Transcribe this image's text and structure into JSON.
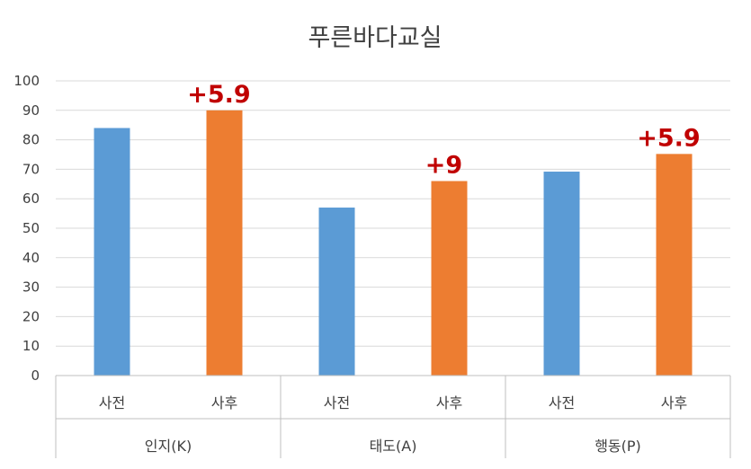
{
  "chart_data": {
    "type": "bar",
    "title": "푸른바다교실",
    "ylim": [
      0,
      100
    ],
    "yticks": [
      0,
      10,
      20,
      30,
      40,
      50,
      60,
      70,
      80,
      90,
      100
    ],
    "grid": true,
    "groups": [
      {
        "label": "인지(K)",
        "bars": [
          {
            "category": "사전",
            "value": 84,
            "color": "#5b9bd5"
          },
          {
            "category": "사후",
            "value": 90,
            "color": "#ed7d31"
          }
        ],
        "delta": "+5.9"
      },
      {
        "label": "태도(A)",
        "bars": [
          {
            "category": "사전",
            "value": 57,
            "color": "#5b9bd5"
          },
          {
            "category": "사후",
            "value": 66,
            "color": "#ed7d31"
          }
        ],
        "delta": "+9"
      },
      {
        "label": "행동(P)",
        "bars": [
          {
            "category": "사전",
            "value": 69.2,
            "color": "#5b9bd5"
          },
          {
            "category": "사후",
            "value": 75.2,
            "color": "#ed7d31"
          }
        ],
        "delta": "+5.9"
      }
    ]
  }
}
